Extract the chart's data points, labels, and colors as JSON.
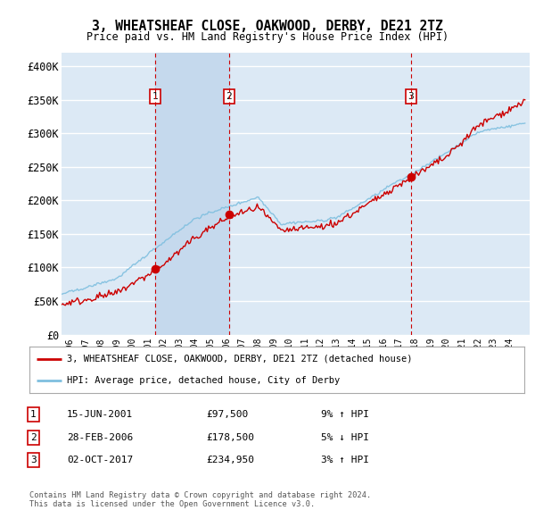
{
  "title": "3, WHEATSHEAF CLOSE, OAKWOOD, DERBY, DE21 2TZ",
  "subtitle": "Price paid vs. HM Land Registry's House Price Index (HPI)",
  "ylim": [
    0,
    420000
  ],
  "yticks": [
    0,
    50000,
    100000,
    150000,
    200000,
    250000,
    300000,
    350000,
    400000
  ],
  "ytick_labels": [
    "£0",
    "£50K",
    "£100K",
    "£150K",
    "£200K",
    "£250K",
    "£300K",
    "£350K",
    "£400K"
  ],
  "background_color": "#ffffff",
  "plot_bg_color": "#dce9f5",
  "grid_color": "#ffffff",
  "hpi_line_color": "#7fbfdf",
  "price_line_color": "#cc0000",
  "sale_marker_color": "#cc0000",
  "vline_color": "#cc0000",
  "transaction_box_color": "#cc0000",
  "shade_color": "#c5d9ed",
  "sales": [
    {
      "date_num": 2001.46,
      "price": 97500,
      "label": "1"
    },
    {
      "date_num": 2006.16,
      "price": 178500,
      "label": "2"
    },
    {
      "date_num": 2017.75,
      "price": 234950,
      "label": "3"
    }
  ],
  "legend_label_price": "3, WHEATSHEAF CLOSE, OAKWOOD, DERBY, DE21 2TZ (detached house)",
  "legend_label_hpi": "HPI: Average price, detached house, City of Derby",
  "table_rows": [
    {
      "num": "1",
      "date": "15-JUN-2001",
      "price": "£97,500",
      "pct": "9% ↑ HPI"
    },
    {
      "num": "2",
      "date": "28-FEB-2006",
      "price": "£178,500",
      "pct": "5% ↓ HPI"
    },
    {
      "num": "3",
      "date": "02-OCT-2017",
      "price": "£234,950",
      "pct": "3% ↑ HPI"
    }
  ],
  "footer": "Contains HM Land Registry data © Crown copyright and database right 2024.\nThis data is licensed under the Open Government Licence v3.0.",
  "xmin": 1995.5,
  "xmax": 2025.3
}
